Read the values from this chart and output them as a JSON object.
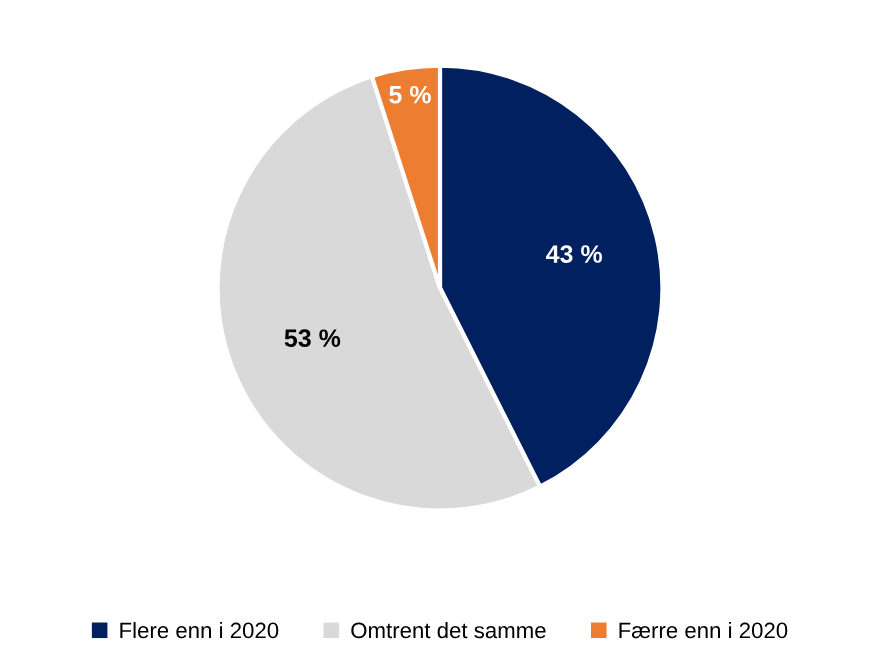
{
  "chart_data": {
    "type": "pie",
    "categories": [
      "Flere enn i 2020",
      "Omtrent det samme",
      "Færre enn i 2020"
    ],
    "values": [
      43,
      53,
      5
    ],
    "colors": [
      "#002060",
      "#d9d9d9",
      "#ed7d31"
    ],
    "value_labels": [
      "43 %",
      "53 %",
      "5 %"
    ],
    "legend": "bottom"
  }
}
